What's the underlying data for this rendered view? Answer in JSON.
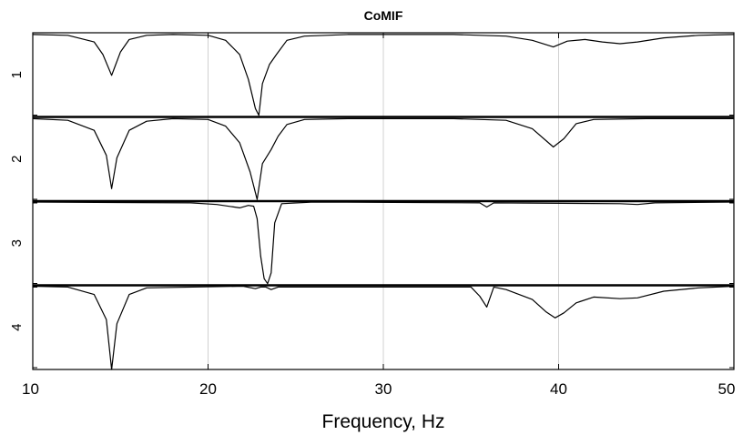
{
  "chart_data": {
    "type": "line",
    "title": "CoMIF",
    "xlabel": "Frequency, Hz",
    "ylabel": "",
    "xlim": [
      10,
      50
    ],
    "ylim": [
      0,
      1
    ],
    "xticks": [
      "10",
      "20",
      "30",
      "40",
      "50"
    ],
    "grid": true,
    "legend": "none",
    "line_color": "#000000",
    "grid_color": "#d0d0d0",
    "series": [
      {
        "name": "1",
        "points": [
          [
            10,
            0.99
          ],
          [
            12,
            0.98
          ],
          [
            13.5,
            0.9
          ],
          [
            14,
            0.75
          ],
          [
            14.5,
            0.5
          ],
          [
            15,
            0.78
          ],
          [
            15.5,
            0.93
          ],
          [
            16.5,
            0.98
          ],
          [
            18,
            0.99
          ],
          [
            20,
            0.98
          ],
          [
            21,
            0.92
          ],
          [
            21.8,
            0.75
          ],
          [
            22.3,
            0.45
          ],
          [
            22.7,
            0.1
          ],
          [
            22.9,
            0.02
          ],
          [
            23.1,
            0.4
          ],
          [
            23.5,
            0.63
          ],
          [
            23.9,
            0.75
          ],
          [
            24.5,
            0.92
          ],
          [
            25.5,
            0.97
          ],
          [
            28,
            0.99
          ],
          [
            34,
            0.99
          ],
          [
            37,
            0.97
          ],
          [
            38.5,
            0.92
          ],
          [
            39.7,
            0.84
          ],
          [
            40.5,
            0.91
          ],
          [
            41.5,
            0.93
          ],
          [
            42.5,
            0.9
          ],
          [
            43.5,
            0.88
          ],
          [
            44.5,
            0.9
          ],
          [
            46,
            0.95
          ],
          [
            48,
            0.98
          ],
          [
            50,
            0.99
          ]
        ]
      },
      {
        "name": "2",
        "points": [
          [
            10,
            0.99
          ],
          [
            12,
            0.97
          ],
          [
            13.5,
            0.85
          ],
          [
            14.2,
            0.55
          ],
          [
            14.5,
            0.15
          ],
          [
            14.8,
            0.52
          ],
          [
            15.5,
            0.85
          ],
          [
            16.5,
            0.96
          ],
          [
            18,
            0.99
          ],
          [
            20,
            0.98
          ],
          [
            21,
            0.9
          ],
          [
            21.8,
            0.7
          ],
          [
            22.4,
            0.35
          ],
          [
            22.8,
            0.02
          ],
          [
            23.1,
            0.45
          ],
          [
            23.6,
            0.62
          ],
          [
            24,
            0.78
          ],
          [
            24.5,
            0.92
          ],
          [
            25.5,
            0.98
          ],
          [
            28,
            0.99
          ],
          [
            34,
            0.99
          ],
          [
            37,
            0.97
          ],
          [
            38.5,
            0.87
          ],
          [
            39.7,
            0.65
          ],
          [
            40.3,
            0.75
          ],
          [
            41,
            0.93
          ],
          [
            42,
            0.98
          ],
          [
            45,
            0.99
          ],
          [
            50,
            0.99
          ]
        ]
      },
      {
        "name": "3",
        "points": [
          [
            10,
            1
          ],
          [
            19,
            0.99
          ],
          [
            20.5,
            0.97
          ],
          [
            21.8,
            0.93
          ],
          [
            22.3,
            0.96
          ],
          [
            22.6,
            0.95
          ],
          [
            22.8,
            0.8
          ],
          [
            23,
            0.35
          ],
          [
            23.2,
            0.08
          ],
          [
            23.4,
            0.02
          ],
          [
            23.6,
            0.15
          ],
          [
            23.8,
            0.75
          ],
          [
            24.2,
            0.98
          ],
          [
            26,
            1
          ],
          [
            35.5,
            0.99
          ],
          [
            35.9,
            0.94
          ],
          [
            36.3,
            0.99
          ],
          [
            43.5,
            0.98
          ],
          [
            44.5,
            0.97
          ],
          [
            45.5,
            0.99
          ],
          [
            50,
            1
          ]
        ]
      },
      {
        "name": "4",
        "points": [
          [
            10,
            1
          ],
          [
            12,
            0.99
          ],
          [
            13.5,
            0.9
          ],
          [
            14.2,
            0.6
          ],
          [
            14.5,
            0
          ],
          [
            14.8,
            0.55
          ],
          [
            15.5,
            0.9
          ],
          [
            16.5,
            0.98
          ],
          [
            22,
            1
          ],
          [
            22.7,
            0.97
          ],
          [
            23,
            0.99
          ],
          [
            23.3,
            0.99
          ],
          [
            23.6,
            0.96
          ],
          [
            24,
            0.99
          ],
          [
            35,
            0.99
          ],
          [
            35.5,
            0.88
          ],
          [
            35.9,
            0.75
          ],
          [
            36.3,
            0.99
          ],
          [
            37,
            0.96
          ],
          [
            38.5,
            0.84
          ],
          [
            39.3,
            0.69
          ],
          [
            39.8,
            0.62
          ],
          [
            40.3,
            0.68
          ],
          [
            41,
            0.8
          ],
          [
            42,
            0.87
          ],
          [
            43.5,
            0.85
          ],
          [
            44.5,
            0.86
          ],
          [
            46,
            0.94
          ],
          [
            48,
            0.98
          ],
          [
            50,
            1
          ]
        ]
      }
    ]
  }
}
